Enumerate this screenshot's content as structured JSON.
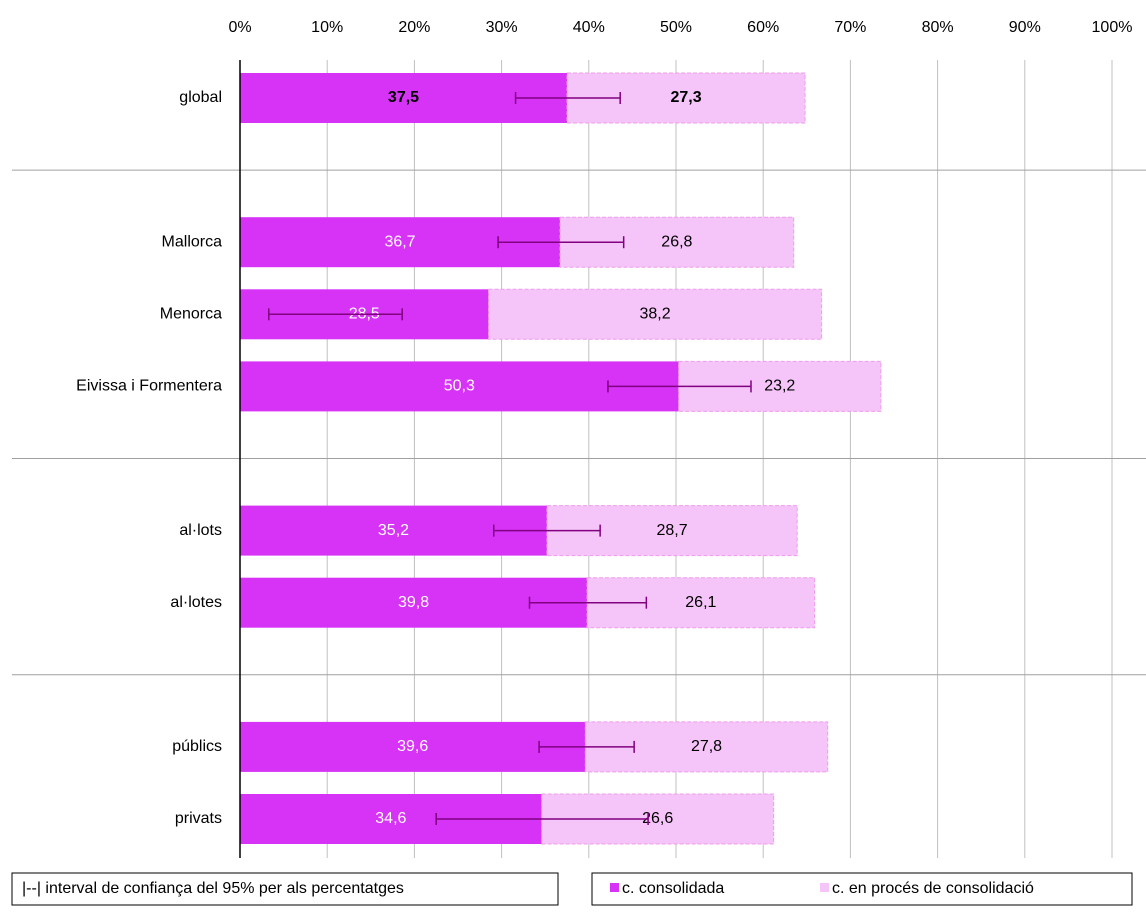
{
  "chart_data": {
    "type": "stacked-bar-horizontal",
    "categories": [
      "global",
      null,
      "Mallorca",
      "Menorca",
      "Eivissa i Formentera",
      null,
      "al·lots",
      "al·lotes",
      null,
      "públics",
      "privats"
    ],
    "series": [
      {
        "name": "c. consolidada",
        "color": "#d733f7",
        "values": [
          37.5,
          null,
          36.7,
          28.5,
          50.3,
          null,
          35.2,
          39.8,
          null,
          39.6,
          34.6
        ],
        "value_labels": [
          "37,5",
          null,
          "36,7",
          "28,5",
          "50,3",
          null,
          "35,2",
          "39,8",
          null,
          "39,6",
          "34,6"
        ],
        "error_low": [
          31.6,
          null,
          29.6,
          3.3,
          42.2,
          null,
          29.1,
          33.2,
          null,
          34.3,
          22.5
        ],
        "error_high": [
          43.6,
          null,
          44.0,
          18.6,
          58.6,
          null,
          41.3,
          46.6,
          null,
          45.2,
          46.8
        ]
      },
      {
        "name": "c. en procés de consolidació",
        "color": "#f5c4f8",
        "values": [
          27.3,
          null,
          26.8,
          38.2,
          23.2,
          null,
          28.7,
          26.1,
          null,
          27.8,
          26.6
        ],
        "value_labels": [
          "27,3",
          null,
          "26,8",
          "38,2",
          "23,2",
          null,
          "28,7",
          "26,1",
          null,
          "27,8",
          "26,6"
        ]
      }
    ],
    "xlim": [
      0,
      100
    ],
    "xticks": [
      {
        "value": 0,
        "label": "0%"
      },
      {
        "value": 10,
        "label": "10%"
      },
      {
        "value": 20,
        "label": "20%"
      },
      {
        "value": 30,
        "label": "30%"
      },
      {
        "value": 40,
        "label": "40%"
      },
      {
        "value": 50,
        "label": "50%"
      },
      {
        "value": 60,
        "label": "60%"
      },
      {
        "value": 70,
        "label": "70%"
      },
      {
        "value": 80,
        "label": "80%"
      },
      {
        "value": 90,
        "label": "90%"
      },
      {
        "value": 100,
        "label": "100%"
      }
    ],
    "grid": true,
    "error_note": "|--|  interval de confiança del 95% per als percentatges"
  }
}
